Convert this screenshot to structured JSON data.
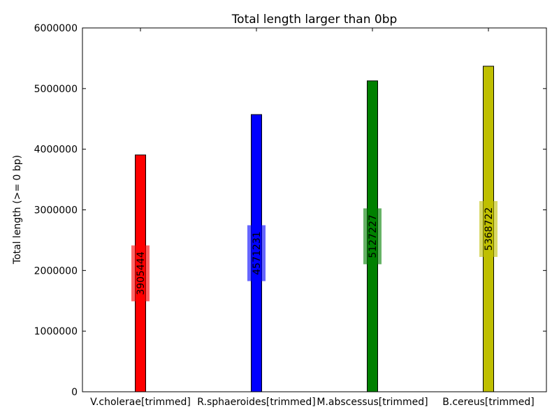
{
  "chart_data": {
    "type": "bar",
    "title": "Total length larger than 0bp",
    "xlabel": "",
    "ylabel": "Total length (>= 0 bp)",
    "ylim": [
      0,
      6000000
    ],
    "yticks": [
      0,
      1000000,
      2000000,
      3000000,
      4000000,
      5000000,
      6000000
    ],
    "ytick_labels": [
      "0",
      "1000000",
      "2000000",
      "3000000",
      "4000000",
      "5000000",
      "6000000"
    ],
    "categories": [
      "V.cholerae[trimmed]",
      "R.sphaeroides[trimmed]",
      "M.abscessus[trimmed]",
      "B.cereus[trimmed]"
    ],
    "values": [
      3905444,
      4571231,
      5127227,
      5368722
    ],
    "data_labels": [
      "3905444",
      "4571231",
      "5127227",
      "5368722"
    ],
    "colors": [
      "#ff0000",
      "#0000ff",
      "#008000",
      "#bfbf00"
    ],
    "grid": false,
    "legend": "none"
  }
}
